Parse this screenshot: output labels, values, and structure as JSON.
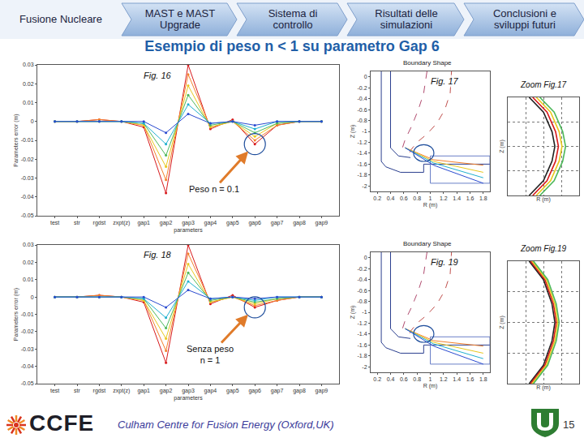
{
  "slide": {
    "nav": [
      "Fusione Nucleare",
      "MAST e MAST Upgrade",
      "Sistema di controllo",
      "Risultati delle simulazioni",
      "Conclusioni e sviluppi futuri"
    ],
    "title": "Esempio di peso n < 1 su parametro Gap 6",
    "footer": {
      "logo": "CCFE",
      "text": "Culham Centre for Fusion Energy (Oxford,UK)",
      "page": 15
    }
  },
  "chart_data": [
    {
      "type": "line",
      "marker": "circle",
      "xlabel": "parameters",
      "ylabel": "Parameters error (m)",
      "categories": [
        "test",
        "str",
        "rgdst",
        "zxpt(z)",
        "gap1",
        "gap2",
        "gap3",
        "gap4",
        "gap5",
        "gap6",
        "gap7",
        "gap8",
        "gap9"
      ],
      "ylim": [
        -0.05,
        0.03
      ],
      "yticks": [
        0.03,
        0.02,
        0.01,
        0,
        -0.01,
        -0.02,
        -0.03,
        -0.04,
        -0.05
      ],
      "grid": false,
      "series": [
        {
          "color": "#d7191c",
          "values": [
            0,
            0,
            0.001,
            0,
            -0.003,
            -0.038,
            0.03,
            -0.004,
            0.001,
            -0.012,
            -0.002,
            0,
            0
          ]
        },
        {
          "color": "#f4802a",
          "values": [
            0,
            0,
            0.001,
            0,
            -0.002,
            -0.031,
            0.025,
            -0.003,
            0,
            -0.01,
            -0.002,
            0,
            0
          ]
        },
        {
          "color": "#e8c81e",
          "values": [
            0,
            0,
            0,
            0,
            -0.002,
            -0.024,
            0.019,
            -0.003,
            0,
            -0.008,
            -0.001,
            0,
            0
          ]
        },
        {
          "color": "#4db85a",
          "values": [
            0,
            0,
            0,
            0,
            -0.001,
            -0.018,
            0.014,
            -0.002,
            0,
            -0.006,
            -0.001,
            0,
            0
          ]
        },
        {
          "color": "#1fb0cf",
          "values": [
            0,
            0,
            0,
            0,
            -0.001,
            -0.012,
            0.009,
            -0.001,
            0,
            -0.004,
            0,
            0,
            0
          ]
        },
        {
          "color": "#2a4bd0",
          "values": [
            0,
            0,
            0,
            0,
            0,
            -0.006,
            0.004,
            -0.001,
            0,
            -0.002,
            0,
            0,
            0
          ]
        }
      ],
      "annotations": [
        {
          "text": "Fig. 16"
        },
        {
          "text": "Peso n = 0.1",
          "category": "gap6"
        }
      ]
    },
    {
      "type": "line",
      "title": "Boundary Shape",
      "xlabel": "R (m)",
      "ylabel": "Z (m)",
      "xlim": [
        0.1,
        1.9
      ],
      "xticks": [
        0.2,
        0.4,
        0.6,
        0.8,
        1,
        1.2,
        1.4,
        1.6,
        1.8
      ],
      "ylim": [
        -2.1,
        0.1
      ],
      "yticks": [
        0,
        -0.2,
        -0.4,
        -0.6,
        -0.8,
        -1,
        -1.2,
        -1.4,
        -1.6,
        -1.8,
        -2
      ],
      "grid": false,
      "series": [
        {
          "color": "#2b3f8f",
          "line_style": "solid",
          "x": [
            0.26,
            0.26,
            0.33,
            0.55,
            0.9,
            0.9,
            1.9
          ],
          "y": [
            0.1,
            -1.55,
            -1.65,
            -1.75,
            -1.75,
            -1.6,
            -1.6
          ]
        },
        {
          "color": "#2b3f8f",
          "line_style": "solid",
          "x": [
            0.4,
            0.4,
            0.52,
            0.7
          ],
          "y": [
            0.1,
            -1.3,
            -1.45,
            -1.48
          ]
        },
        {
          "color": "#6a7fc7",
          "line_style": "solid",
          "x": [
            1.0,
            1.9,
            1.9,
            1.0,
            1.0
          ],
          "y": [
            -1.45,
            -1.45,
            -1.95,
            -1.95,
            -1.45
          ]
        },
        {
          "color": "#c0504d",
          "line_style": "dash",
          "x": [
            1.32,
            1.3,
            1.22,
            1.1,
            0.95,
            0.8,
            0.7,
            0.66
          ],
          "y": [
            0.1,
            -0.3,
            -0.6,
            -0.85,
            -1.05,
            -1.2,
            -1.35,
            -1.5
          ]
        },
        {
          "color": "#b04a6e",
          "line_style": "dash",
          "x": [
            0.95,
            0.9,
            0.82,
            0.72,
            0.62,
            0.58
          ],
          "y": [
            0.1,
            -0.3,
            -0.6,
            -0.9,
            -1.15,
            -1.3
          ]
        },
        {
          "color": "#f4802a",
          "line_style": "solid",
          "x": [
            0.62,
            1.05,
            1.8
          ],
          "y": [
            -1.3,
            -1.52,
            -1.62
          ]
        },
        {
          "color": "#e8c81e",
          "line_style": "solid",
          "x": [
            0.62,
            1.05,
            1.8
          ],
          "y": [
            -1.3,
            -1.55,
            -1.75
          ]
        },
        {
          "color": "#1fb0cf",
          "line_style": "solid",
          "x": [
            0.62,
            1.05,
            1.8
          ],
          "y": [
            -1.3,
            -1.58,
            -1.85
          ]
        },
        {
          "color": "#2a4bd0",
          "line_style": "solid",
          "x": [
            0.62,
            1.05,
            1.8
          ],
          "y": [
            -1.3,
            -1.62,
            -1.95
          ]
        }
      ],
      "annotations": [
        {
          "text": "Fig. 17"
        }
      ]
    },
    {
      "type": "line",
      "xlabel": "R (m)",
      "ylabel": "Z (m)",
      "tick_labels": false,
      "grid": true,
      "xlim": [
        0,
        1
      ],
      "xticks": [
        0,
        0.25,
        0.5,
        0.75,
        1
      ],
      "ylim": [
        0,
        1
      ],
      "yticks": [
        0,
        0.25,
        0.5,
        0.75,
        1
      ],
      "series": [
        {
          "color": "#222222",
          "line_style": "solid",
          "x": [
            0.3,
            0.5,
            0.62,
            0.66,
            0.62,
            0.5,
            0.3
          ],
          "y": [
            1.0,
            0.85,
            0.65,
            0.5,
            0.35,
            0.15,
            0.0
          ]
        },
        {
          "color": "#d7191c",
          "line_style": "solid",
          "x": [
            0.35,
            0.55,
            0.67,
            0.71,
            0.67,
            0.55,
            0.35
          ],
          "y": [
            1.0,
            0.85,
            0.65,
            0.5,
            0.35,
            0.15,
            0.0
          ]
        },
        {
          "color": "#e8c81e",
          "line_style": "solid",
          "x": [
            0.4,
            0.6,
            0.72,
            0.76,
            0.72,
            0.6,
            0.4
          ],
          "y": [
            1.0,
            0.85,
            0.65,
            0.5,
            0.35,
            0.15,
            0.0
          ]
        },
        {
          "color": "#4db85a",
          "line_style": "solid",
          "x": [
            0.45,
            0.65,
            0.77,
            0.81,
            0.77,
            0.65,
            0.45
          ],
          "y": [
            1.0,
            0.85,
            0.65,
            0.5,
            0.35,
            0.15,
            0.0
          ]
        }
      ],
      "annotations": [
        {
          "text": "Zoom Fig.17"
        }
      ]
    },
    {
      "type": "line",
      "marker": "circle",
      "xlabel": "parameters",
      "ylabel": "Parameters error (m)",
      "categories": [
        "test",
        "str",
        "rgdst",
        "zxpt(z)",
        "gap1",
        "gap2",
        "gap3",
        "gap4",
        "gap5",
        "gap6",
        "gap7",
        "gap8",
        "gap9"
      ],
      "ylim": [
        -0.05,
        0.03
      ],
      "yticks": [
        0.03,
        0.02,
        0.01,
        0,
        -0.01,
        -0.02,
        -0.03,
        -0.04,
        -0.05
      ],
      "grid": false,
      "series": [
        {
          "color": "#d7191c",
          "values": [
            0,
            0,
            0.001,
            0,
            -0.003,
            -0.038,
            0.03,
            -0.004,
            0.001,
            -0.006,
            -0.002,
            0,
            0
          ]
        },
        {
          "color": "#f4802a",
          "values": [
            0,
            0,
            0.001,
            0,
            -0.002,
            -0.031,
            0.025,
            -0.003,
            0,
            -0.005,
            -0.002,
            0,
            0
          ]
        },
        {
          "color": "#e8c81e",
          "values": [
            0,
            0,
            0,
            0,
            -0.002,
            -0.024,
            0.019,
            -0.003,
            0,
            -0.004,
            -0.001,
            0,
            0
          ]
        },
        {
          "color": "#4db85a",
          "values": [
            0,
            0,
            0,
            0,
            -0.001,
            -0.018,
            0.014,
            -0.002,
            0,
            -0.003,
            -0.001,
            0,
            0
          ]
        },
        {
          "color": "#1fb0cf",
          "values": [
            0,
            0,
            0,
            0,
            -0.001,
            -0.012,
            0.009,
            -0.001,
            0,
            -0.002,
            0,
            0,
            0
          ]
        },
        {
          "color": "#2a4bd0",
          "values": [
            0,
            0,
            0,
            0,
            0,
            -0.006,
            0.004,
            -0.001,
            0,
            -0.001,
            0,
            0,
            0
          ]
        }
      ],
      "annotations": [
        {
          "text": "Fig. 18"
        },
        {
          "text": "Senza peso\nn = 1",
          "category": "gap6"
        }
      ]
    },
    {
      "type": "line",
      "title": "Boundary Shape",
      "xlabel": "R (m)",
      "ylabel": "Z (m)",
      "xlim": [
        0.1,
        1.9
      ],
      "xticks": [
        0.2,
        0.4,
        0.6,
        0.8,
        1,
        1.2,
        1.4,
        1.6,
        1.8
      ],
      "ylim": [
        -2.1,
        0.1
      ],
      "yticks": [
        0,
        -0.2,
        -0.4,
        -0.6,
        -0.8,
        -1,
        -1.2,
        -1.4,
        -1.6,
        -1.8,
        -2
      ],
      "grid": false,
      "series": [
        {
          "color": "#2b3f8f",
          "line_style": "solid",
          "x": [
            0.26,
            0.26,
            0.33,
            0.55,
            0.9,
            0.9,
            1.9
          ],
          "y": [
            0.1,
            -1.55,
            -1.65,
            -1.75,
            -1.75,
            -1.6,
            -1.6
          ]
        },
        {
          "color": "#2b3f8f",
          "line_style": "solid",
          "x": [
            0.4,
            0.4,
            0.52,
            0.7
          ],
          "y": [
            0.1,
            -1.3,
            -1.45,
            -1.48
          ]
        },
        {
          "color": "#6a7fc7",
          "line_style": "solid",
          "x": [
            1.0,
            1.9,
            1.9,
            1.0,
            1.0
          ],
          "y": [
            -1.45,
            -1.45,
            -1.95,
            -1.95,
            -1.45
          ]
        },
        {
          "color": "#c0504d",
          "line_style": "dash",
          "x": [
            1.32,
            1.3,
            1.22,
            1.1,
            0.95,
            0.8,
            0.7,
            0.66
          ],
          "y": [
            0.1,
            -0.3,
            -0.6,
            -0.85,
            -1.05,
            -1.2,
            -1.35,
            -1.5
          ]
        },
        {
          "color": "#b04a6e",
          "line_style": "dash",
          "x": [
            0.95,
            0.9,
            0.82,
            0.72,
            0.62,
            0.58
          ],
          "y": [
            0.1,
            -0.3,
            -0.6,
            -0.9,
            -1.15,
            -1.3
          ]
        },
        {
          "color": "#f4802a",
          "line_style": "solid",
          "x": [
            0.62,
            1.05,
            1.8
          ],
          "y": [
            -1.3,
            -1.52,
            -1.62
          ]
        },
        {
          "color": "#e8c81e",
          "line_style": "solid",
          "x": [
            0.62,
            1.05,
            1.8
          ],
          "y": [
            -1.3,
            -1.55,
            -1.75
          ]
        },
        {
          "color": "#1fb0cf",
          "line_style": "solid",
          "x": [
            0.62,
            1.05,
            1.8
          ],
          "y": [
            -1.3,
            -1.58,
            -1.85
          ]
        },
        {
          "color": "#2a4bd0",
          "line_style": "solid",
          "x": [
            0.62,
            1.05,
            1.8
          ],
          "y": [
            -1.3,
            -1.62,
            -1.95
          ]
        }
      ],
      "annotations": [
        {
          "text": "Fig. 19"
        }
      ]
    },
    {
      "type": "line",
      "xlabel": "R (m)",
      "ylabel": "Z (m)",
      "tick_labels": false,
      "grid": true,
      "xlim": [
        0,
        1
      ],
      "xticks": [
        0,
        0.25,
        0.5,
        0.75,
        1
      ],
      "ylim": [
        0,
        1
      ],
      "yticks": [
        0,
        0.25,
        0.5,
        0.75,
        1
      ],
      "series": [
        {
          "color": "#222222",
          "line_style": "solid",
          "x": [
            0.3,
            0.5,
            0.62,
            0.66,
            0.62,
            0.5,
            0.3
          ],
          "y": [
            1.0,
            0.85,
            0.65,
            0.5,
            0.35,
            0.15,
            0.0
          ]
        },
        {
          "color": "#d7191c",
          "line_style": "solid",
          "x": [
            0.32,
            0.52,
            0.64,
            0.68,
            0.64,
            0.52,
            0.32
          ],
          "y": [
            1.0,
            0.85,
            0.65,
            0.5,
            0.35,
            0.15,
            0.0
          ]
        },
        {
          "color": "#e8c81e",
          "line_style": "solid",
          "x": [
            0.34,
            0.54,
            0.66,
            0.7,
            0.66,
            0.54,
            0.34
          ],
          "y": [
            1.0,
            0.85,
            0.65,
            0.5,
            0.35,
            0.15,
            0.0
          ]
        },
        {
          "color": "#4db85a",
          "line_style": "solid",
          "x": [
            0.36,
            0.56,
            0.68,
            0.72,
            0.68,
            0.56,
            0.36
          ],
          "y": [
            1.0,
            0.85,
            0.65,
            0.5,
            0.35,
            0.15,
            0.0
          ]
        }
      ],
      "annotations": [
        {
          "text": "Zoom Fig.19"
        }
      ]
    }
  ]
}
